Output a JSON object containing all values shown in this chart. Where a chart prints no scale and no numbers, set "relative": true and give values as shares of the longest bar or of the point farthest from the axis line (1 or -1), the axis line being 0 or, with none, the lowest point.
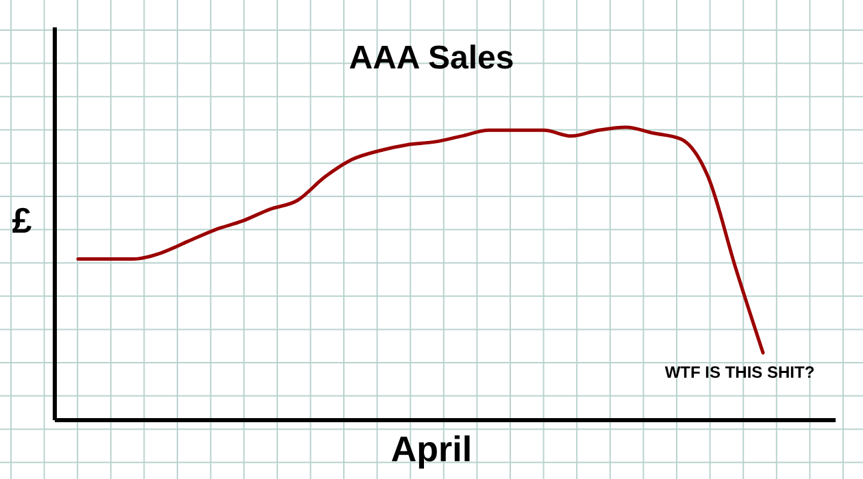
{
  "chart_data": {
    "type": "line",
    "title": "AAA Sales",
    "xlabel": "April",
    "ylabel": "£",
    "relative": true,
    "grid": true,
    "categories": [
      null,
      null,
      null,
      null,
      null,
      null,
      null,
      null,
      null,
      null,
      null,
      null,
      null,
      null,
      null,
      null,
      null,
      null,
      null,
      null,
      null,
      null,
      null,
      null,
      null,
      null
    ],
    "series": [
      {
        "color": "#9b0000",
        "values": [
          0.55,
          0.55,
          0.55,
          0.57,
          0.61,
          0.65,
          0.68,
          0.72,
          0.75,
          0.83,
          0.89,
          0.92,
          0.94,
          0.95,
          0.97,
          0.99,
          0.99,
          0.99,
          0.97,
          0.99,
          1,
          0.98,
          0.96,
          0.83,
          0.52,
          0.23
        ]
      }
    ],
    "annotations": [
      "WTF IS THIS SHIT?"
    ]
  }
}
